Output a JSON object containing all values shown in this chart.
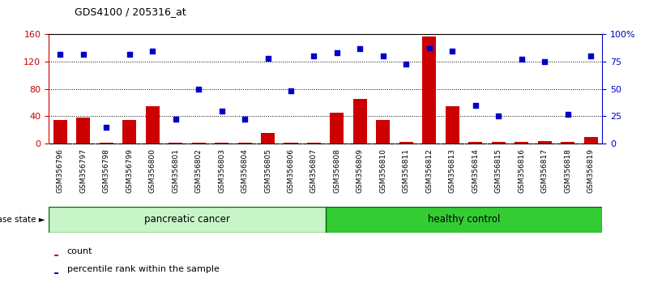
{
  "title": "GDS4100 / 205316_at",
  "samples": [
    "GSM356796",
    "GSM356797",
    "GSM356798",
    "GSM356799",
    "GSM356800",
    "GSM356801",
    "GSM356802",
    "GSM356803",
    "GSM356804",
    "GSM356805",
    "GSM356806",
    "GSM356807",
    "GSM356808",
    "GSM356809",
    "GSM356810",
    "GSM356811",
    "GSM356812",
    "GSM356813",
    "GSM356814",
    "GSM356815",
    "GSM356816",
    "GSM356817",
    "GSM356818",
    "GSM356819"
  ],
  "counts": [
    35,
    38,
    1,
    35,
    55,
    1,
    1,
    1,
    1,
    15,
    1,
    1,
    45,
    65,
    35,
    2,
    157,
    55,
    2,
    2,
    2,
    4,
    2,
    10
  ],
  "percentiles": [
    82,
    82,
    15,
    82,
    85,
    22,
    50,
    30,
    22,
    78,
    48,
    80,
    83,
    87,
    80,
    73,
    88,
    85,
    35,
    25,
    77,
    75,
    27,
    80
  ],
  "left_ylim": [
    0,
    160
  ],
  "right_ylim": [
    0,
    100
  ],
  "left_yticks": [
    0,
    40,
    80,
    120,
    160
  ],
  "right_yticks": [
    0,
    25,
    50,
    75,
    100
  ],
  "right_yticklabels": [
    "0",
    "25",
    "50",
    "75",
    "100%"
  ],
  "bar_color": "#cc0000",
  "dot_color": "#0000cc",
  "pancreatic_light": "#c8f5c8",
  "healthy_green": "#33cc33",
  "pc_count": 12,
  "hc_count": 12
}
